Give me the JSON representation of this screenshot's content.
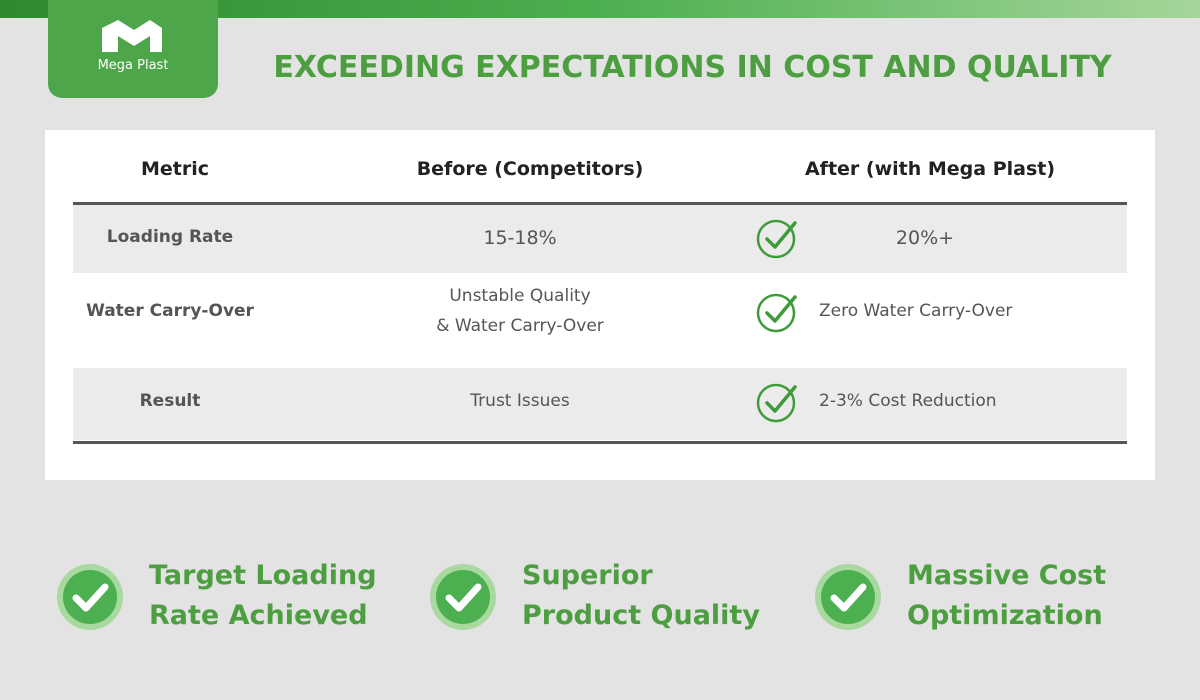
{
  "header": {
    "logo_text": "Mega Plast",
    "title": "EXCEEDING EXPECTATIONS IN COST AND QUALITY"
  },
  "table": {
    "headers": [
      "Metric",
      "Before (Competitors)",
      "After (with Mega Plast)"
    ],
    "rows": [
      [
        "Loading Rate",
        [
          "15-18%"
        ],
        "20%+"
      ],
      [
        "Water Carry-Over",
        [
          "Unstable Quality",
          "& Water Carry-Over"
        ],
        "Zero Water Carry-Over"
      ],
      [
        "Result",
        [
          "Trust Issues"
        ],
        "2-3% Cost Reduction"
      ]
    ]
  },
  "highlights": [
    [
      "Target Loading",
      "Rate Achieved"
    ],
    [
      "Superior",
      "Product Quality"
    ],
    [
      "Massive Cost",
      "Optimization"
    ]
  ]
}
